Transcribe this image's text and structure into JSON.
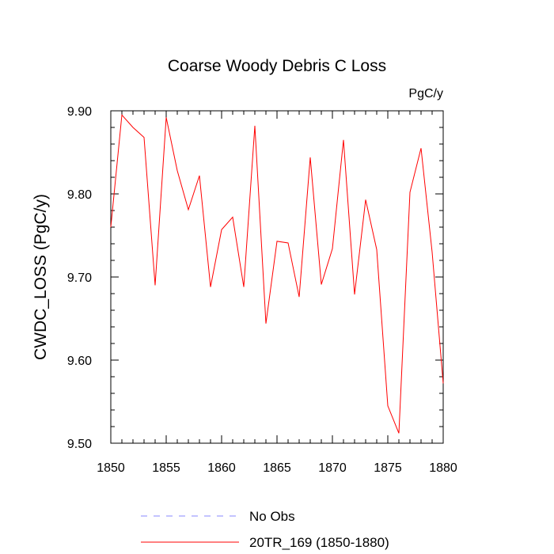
{
  "chart_data": {
    "type": "line",
    "title": "Coarse Woody Debris C Loss",
    "units": "PgC/y",
    "xlabel": "",
    "ylabel": "CWDC_LOSS  (PgC/y)",
    "xlim": [
      1850,
      1880
    ],
    "ylim": [
      9.5,
      9.9
    ],
    "x_ticks": [
      1850,
      1855,
      1860,
      1865,
      1870,
      1875,
      1880
    ],
    "y_ticks": [
      9.5,
      9.6,
      9.7,
      9.8,
      9.9
    ],
    "x_tick_labels": [
      "1850",
      "1855",
      "1860",
      "1865",
      "1870",
      "1875",
      "1880"
    ],
    "y_tick_labels": [
      "9.50",
      "9.60",
      "9.70",
      "9.80",
      "9.90"
    ],
    "grid": false,
    "legend_position": "bottom",
    "series": [
      {
        "name": "No Obs",
        "color": "#8888ff",
        "style": "dashed",
        "x": [],
        "values": []
      },
      {
        "name": "20TR_169 (1850-1880)",
        "color": "#ff0000",
        "style": "solid",
        "x": [
          1850,
          1851,
          1852,
          1853,
          1854,
          1855,
          1856,
          1857,
          1858,
          1859,
          1860,
          1861,
          1862,
          1863,
          1864,
          1865,
          1866,
          1867,
          1868,
          1869,
          1870,
          1871,
          1872,
          1873,
          1874,
          1875,
          1876,
          1877,
          1878,
          1879,
          1880
        ],
        "values": [
          9.76,
          9.895,
          9.88,
          9.868,
          9.69,
          9.892,
          9.828,
          9.781,
          9.822,
          9.688,
          9.757,
          9.772,
          9.688,
          9.882,
          9.644,
          9.743,
          9.741,
          9.676,
          9.844,
          9.691,
          9.734,
          9.865,
          9.679,
          9.793,
          9.733,
          9.545,
          9.512,
          9.802,
          9.855,
          9.73,
          9.572
        ]
      }
    ]
  }
}
